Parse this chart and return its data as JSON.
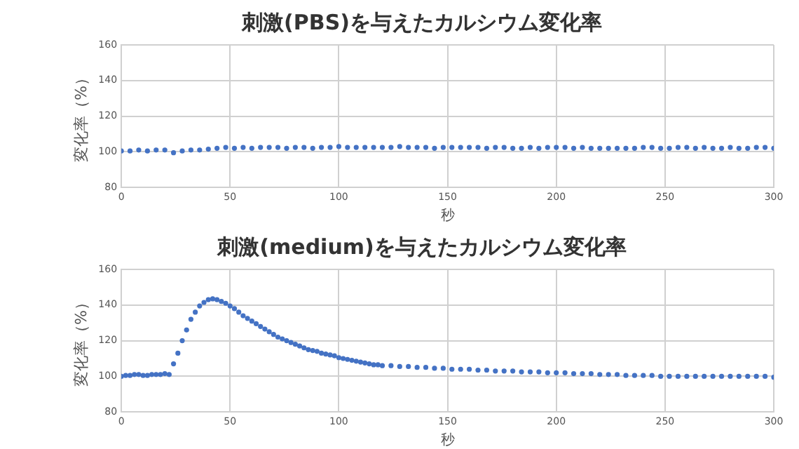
{
  "chart_data": [
    {
      "type": "scatter",
      "title": "刺激(PBS)を与えたカルシウム変化率",
      "xlabel": "秒",
      "ylabel": "変化率（%）",
      "color": "#4472c4",
      "marker": "circle",
      "grid": true,
      "xlim": [
        0,
        300
      ],
      "xticks": [
        0,
        50,
        100,
        150,
        200,
        250,
        300
      ],
      "ylim": [
        80,
        160
      ],
      "yticks": [
        80,
        100,
        120,
        140,
        160
      ],
      "x": [
        0,
        4,
        8,
        12,
        16,
        20,
        24,
        28,
        32,
        36,
        40,
        44,
        48,
        52,
        56,
        60,
        64,
        68,
        72,
        76,
        80,
        84,
        88,
        92,
        96,
        100,
        104,
        108,
        112,
        116,
        120,
        124,
        128,
        132,
        136,
        140,
        144,
        148,
        152,
        156,
        160,
        164,
        168,
        172,
        176,
        180,
        184,
        188,
        192,
        196,
        200,
        204,
        208,
        212,
        216,
        220,
        224,
        228,
        232,
        236,
        240,
        244,
        248,
        252,
        256,
        260,
        264,
        268,
        272,
        276,
        280,
        284,
        288,
        292,
        296,
        300
      ],
      "values": [
        100.5,
        100.5,
        101,
        100.5,
        101,
        101,
        99.5,
        100.5,
        101,
        101,
        101.5,
        102,
        102.5,
        102,
        102.5,
        102,
        102.5,
        102.5,
        102.5,
        102,
        102.5,
        102.5,
        102,
        102.5,
        102.5,
        103,
        102.5,
        102.5,
        102.5,
        102.5,
        102.5,
        102.5,
        103,
        102.5,
        102.5,
        102.5,
        102,
        102.5,
        102.5,
        102.5,
        102.5,
        102.5,
        102,
        102.5,
        102.5,
        102,
        102,
        102.5,
        102,
        102.5,
        102.5,
        102.5,
        102,
        102.5,
        102,
        102,
        102,
        102,
        102,
        102,
        102.5,
        102.5,
        102,
        102,
        102.5,
        102.5,
        102,
        102.5,
        102,
        102,
        102.5,
        102,
        102,
        102.5,
        102.5,
        102
      ]
    },
    {
      "type": "scatter",
      "title": "刺激(medium)を与えたカルシウム変化率",
      "xlabel": "秒",
      "ylabel": "変化率（%）",
      "color": "#4472c4",
      "marker": "circle",
      "grid": true,
      "xlim": [
        0,
        300
      ],
      "xticks": [
        0,
        50,
        100,
        150,
        200,
        250,
        300
      ],
      "ylim": [
        80,
        160
      ],
      "yticks": [
        80,
        100,
        120,
        140,
        160
      ],
      "x": [
        0,
        2,
        4,
        6,
        8,
        10,
        12,
        14,
        16,
        18,
        20,
        22,
        24,
        26,
        28,
        30,
        32,
        34,
        36,
        38,
        40,
        42,
        44,
        46,
        48,
        50,
        52,
        54,
        56,
        58,
        60,
        62,
        64,
        66,
        68,
        70,
        72,
        74,
        76,
        78,
        80,
        82,
        84,
        86,
        88,
        90,
        92,
        94,
        96,
        98,
        100,
        102,
        104,
        106,
        108,
        110,
        112,
        114,
        116,
        118,
        120,
        124,
        128,
        132,
        136,
        140,
        144,
        148,
        152,
        156,
        160,
        164,
        168,
        172,
        176,
        180,
        184,
        188,
        192,
        196,
        200,
        204,
        208,
        212,
        216,
        220,
        224,
        228,
        232,
        236,
        240,
        244,
        248,
        252,
        256,
        260,
        264,
        268,
        272,
        276,
        280,
        284,
        288,
        292,
        296,
        300
      ],
      "values": [
        100,
        100.5,
        100.5,
        101,
        101,
        100.5,
        100.5,
        101,
        101,
        101,
        101.5,
        101,
        107,
        113,
        120,
        126,
        132,
        136,
        139.5,
        141.5,
        143,
        143.5,
        143,
        142,
        141,
        139.5,
        138,
        136,
        134,
        132.5,
        131,
        129.5,
        128,
        126.5,
        125,
        123.5,
        122,
        121,
        120,
        119,
        118,
        117,
        116,
        115,
        114.5,
        114,
        113,
        112.5,
        112,
        111.5,
        110.5,
        110,
        109.5,
        109,
        108.5,
        108,
        107.5,
        107,
        106.5,
        106.5,
        106,
        106,
        105.5,
        105.5,
        105,
        105,
        104.5,
        104.5,
        104,
        104,
        104,
        103.5,
        103.5,
        103,
        103,
        103,
        102.5,
        102.5,
        102.5,
        102,
        102,
        102,
        101.5,
        101.5,
        101.5,
        101,
        101,
        101,
        100.5,
        100.5,
        100.5,
        100.5,
        100,
        100,
        100,
        100,
        100,
        100,
        100,
        100,
        100,
        100,
        100,
        100,
        100,
        99.5
      ]
    }
  ]
}
